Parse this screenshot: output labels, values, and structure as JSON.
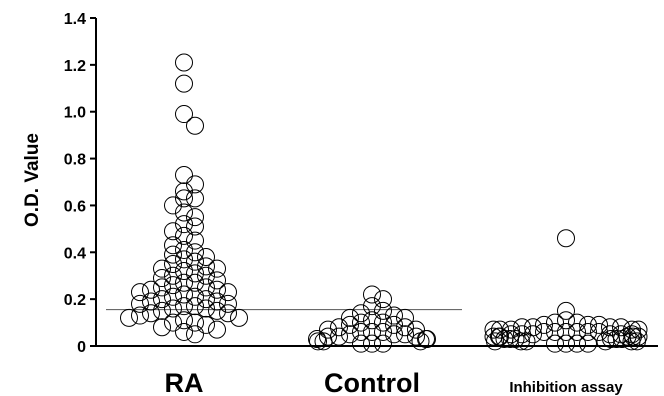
{
  "chart_data": {
    "type": "scatter",
    "title": "",
    "ylabel": "O.D. Value",
    "xlabel": "",
    "ylim": [
      0,
      1.4
    ],
    "yticks": [
      "0",
      "0.2",
      "0.4",
      "0.6",
      "0.8",
      "1.0",
      "1.2",
      "1.4"
    ],
    "categories": [
      "RA",
      "Control",
      "Inhibition assay"
    ],
    "cutoff": 0.155,
    "groups": [
      {
        "name": "RA",
        "values": [
          1.21,
          1.12,
          0.99,
          0.94,
          0.73,
          0.69,
          0.66,
          0.63,
          0.63,
          0.6,
          0.57,
          0.55,
          0.52,
          0.51,
          0.49,
          0.47,
          0.45,
          0.43,
          0.41,
          0.4,
          0.39,
          0.38,
          0.37,
          0.36,
          0.35,
          0.34,
          0.33,
          0.33,
          0.32,
          0.31,
          0.3,
          0.3,
          0.29,
          0.28,
          0.27,
          0.27,
          0.26,
          0.25,
          0.25,
          0.24,
          0.24,
          0.23,
          0.23,
          0.22,
          0.21,
          0.21,
          0.2,
          0.2,
          0.19,
          0.19,
          0.18,
          0.18,
          0.17,
          0.17,
          0.16,
          0.16,
          0.15,
          0.15,
          0.14,
          0.14,
          0.13,
          0.12,
          0.12,
          0.11,
          0.1,
          0.1,
          0.09,
          0.08,
          0.07,
          0.06,
          0.05
        ]
      },
      {
        "name": "Control",
        "values": [
          0.22,
          0.2,
          0.17,
          0.15,
          0.14,
          0.13,
          0.12,
          0.12,
          0.11,
          0.1,
          0.1,
          0.09,
          0.09,
          0.08,
          0.08,
          0.07,
          0.07,
          0.06,
          0.06,
          0.06,
          0.05,
          0.05,
          0.05,
          0.04,
          0.04,
          0.04,
          0.03,
          0.03,
          0.03,
          0.02,
          0.02,
          0.02,
          0.01,
          0.01,
          0.01
        ]
      },
      {
        "name": "Inhibition assay",
        "values": [
          0.46,
          0.15,
          0.11,
          0.1,
          0.1,
          0.09,
          0.09,
          0.09,
          0.08,
          0.08,
          0.08,
          0.08,
          0.07,
          0.07,
          0.07,
          0.07,
          0.07,
          0.06,
          0.06,
          0.06,
          0.06,
          0.06,
          0.06,
          0.05,
          0.05,
          0.05,
          0.05,
          0.05,
          0.05,
          0.04,
          0.04,
          0.04,
          0.04,
          0.04,
          0.04,
          0.03,
          0.03,
          0.03,
          0.03,
          0.03,
          0.03,
          0.02,
          0.02,
          0.02,
          0.02,
          0.02,
          0.02,
          0.01,
          0.01,
          0.01,
          0.01
        ]
      }
    ]
  }
}
